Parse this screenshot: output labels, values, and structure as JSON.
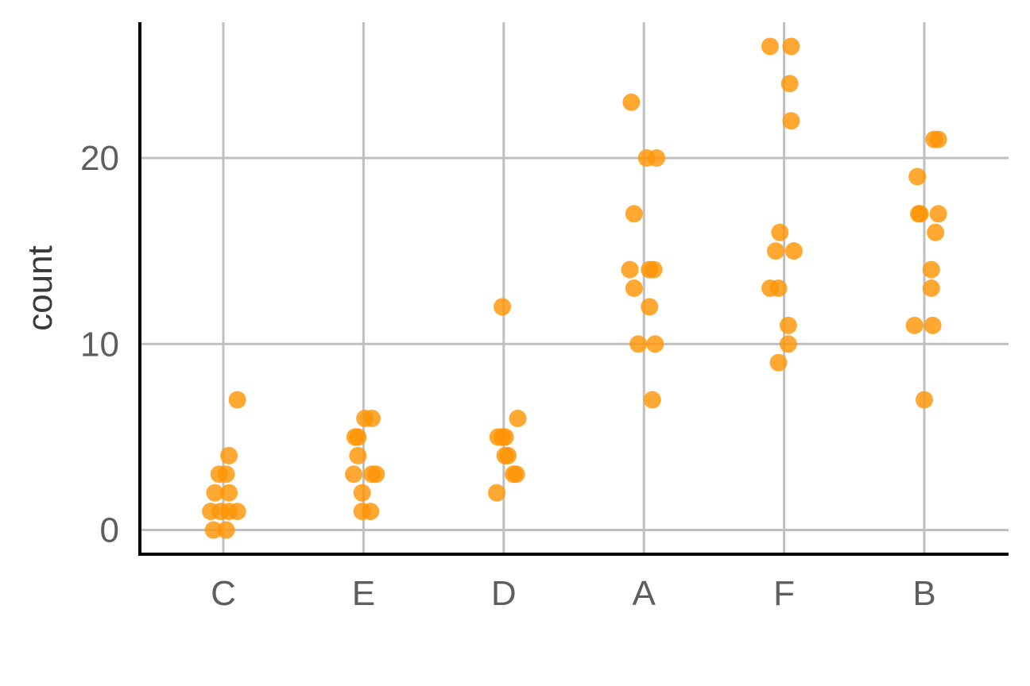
{
  "chart_data": {
    "type": "scatter",
    "title": "",
    "xlabel": "",
    "ylabel": "count",
    "categories": [
      "C",
      "E",
      "D",
      "A",
      "F",
      "B"
    ],
    "y_ticks": [
      0,
      10,
      20
    ],
    "ylim": [
      -1.3,
      27.3
    ],
    "grid": true,
    "point_color": "#ff9505",
    "points": [
      {
        "cat": "C",
        "jitter": -0.07,
        "y": 0
      },
      {
        "cat": "C",
        "jitter": 0.02,
        "y": 0
      },
      {
        "cat": "C",
        "jitter": -0.09,
        "y": 1
      },
      {
        "cat": "C",
        "jitter": -0.02,
        "y": 1
      },
      {
        "cat": "C",
        "jitter": 0.04,
        "y": 1
      },
      {
        "cat": "C",
        "jitter": 0.1,
        "y": 1
      },
      {
        "cat": "C",
        "jitter": -0.06,
        "y": 2
      },
      {
        "cat": "C",
        "jitter": 0.04,
        "y": 2
      },
      {
        "cat": "C",
        "jitter": -0.03,
        "y": 3
      },
      {
        "cat": "C",
        "jitter": 0.02,
        "y": 3
      },
      {
        "cat": "C",
        "jitter": 0.04,
        "y": 4
      },
      {
        "cat": "C",
        "jitter": 0.1,
        "y": 7
      },
      {
        "cat": "E",
        "jitter": -0.01,
        "y": 1
      },
      {
        "cat": "E",
        "jitter": 0.05,
        "y": 1
      },
      {
        "cat": "E",
        "jitter": -0.01,
        "y": 2
      },
      {
        "cat": "E",
        "jitter": -0.07,
        "y": 3
      },
      {
        "cat": "E",
        "jitter": 0.06,
        "y": 3
      },
      {
        "cat": "E",
        "jitter": 0.09,
        "y": 3
      },
      {
        "cat": "E",
        "jitter": -0.04,
        "y": 4
      },
      {
        "cat": "E",
        "jitter": -0.06,
        "y": 5
      },
      {
        "cat": "E",
        "jitter": -0.04,
        "y": 5
      },
      {
        "cat": "E",
        "jitter": 0.01,
        "y": 6
      },
      {
        "cat": "E",
        "jitter": 0.06,
        "y": 6
      },
      {
        "cat": "D",
        "jitter": -0.05,
        "y": 2
      },
      {
        "cat": "D",
        "jitter": 0.07,
        "y": 3
      },
      {
        "cat": "D",
        "jitter": 0.09,
        "y": 3
      },
      {
        "cat": "D",
        "jitter": 0.01,
        "y": 4
      },
      {
        "cat": "D",
        "jitter": 0.03,
        "y": 4
      },
      {
        "cat": "D",
        "jitter": -0.04,
        "y": 5
      },
      {
        "cat": "D",
        "jitter": -0.01,
        "y": 5
      },
      {
        "cat": "D",
        "jitter": 0.01,
        "y": 5
      },
      {
        "cat": "D",
        "jitter": 0.1,
        "y": 6
      },
      {
        "cat": "D",
        "jitter": -0.01,
        "y": 12
      },
      {
        "cat": "A",
        "jitter": 0.06,
        "y": 7
      },
      {
        "cat": "A",
        "jitter": -0.04,
        "y": 10
      },
      {
        "cat": "A",
        "jitter": 0.08,
        "y": 10
      },
      {
        "cat": "A",
        "jitter": 0.04,
        "y": 12
      },
      {
        "cat": "A",
        "jitter": -0.07,
        "y": 13
      },
      {
        "cat": "A",
        "jitter": -0.1,
        "y": 14
      },
      {
        "cat": "A",
        "jitter": 0.04,
        "y": 14
      },
      {
        "cat": "A",
        "jitter": 0.07,
        "y": 14
      },
      {
        "cat": "A",
        "jitter": -0.07,
        "y": 17
      },
      {
        "cat": "A",
        "jitter": 0.02,
        "y": 20
      },
      {
        "cat": "A",
        "jitter": 0.09,
        "y": 20
      },
      {
        "cat": "A",
        "jitter": -0.09,
        "y": 23
      },
      {
        "cat": "F",
        "jitter": -0.04,
        "y": 9
      },
      {
        "cat": "F",
        "jitter": 0.03,
        "y": 10
      },
      {
        "cat": "F",
        "jitter": 0.03,
        "y": 11
      },
      {
        "cat": "F",
        "jitter": -0.1,
        "y": 13
      },
      {
        "cat": "F",
        "jitter": -0.04,
        "y": 13
      },
      {
        "cat": "F",
        "jitter": -0.06,
        "y": 15
      },
      {
        "cat": "F",
        "jitter": 0.07,
        "y": 15
      },
      {
        "cat": "F",
        "jitter": -0.03,
        "y": 16
      },
      {
        "cat": "F",
        "jitter": 0.05,
        "y": 22
      },
      {
        "cat": "F",
        "jitter": 0.04,
        "y": 24
      },
      {
        "cat": "F",
        "jitter": -0.1,
        "y": 26
      },
      {
        "cat": "F",
        "jitter": 0.05,
        "y": 26
      },
      {
        "cat": "B",
        "jitter": 0.0,
        "y": 7
      },
      {
        "cat": "B",
        "jitter": -0.07,
        "y": 11
      },
      {
        "cat": "B",
        "jitter": 0.06,
        "y": 11
      },
      {
        "cat": "B",
        "jitter": 0.05,
        "y": 13
      },
      {
        "cat": "B",
        "jitter": 0.05,
        "y": 14
      },
      {
        "cat": "B",
        "jitter": 0.08,
        "y": 16
      },
      {
        "cat": "B",
        "jitter": -0.04,
        "y": 17
      },
      {
        "cat": "B",
        "jitter": -0.03,
        "y": 17
      },
      {
        "cat": "B",
        "jitter": 0.1,
        "y": 17
      },
      {
        "cat": "B",
        "jitter": -0.05,
        "y": 19
      },
      {
        "cat": "B",
        "jitter": 0.07,
        "y": 21
      },
      {
        "cat": "B",
        "jitter": 0.1,
        "y": 21
      }
    ]
  }
}
